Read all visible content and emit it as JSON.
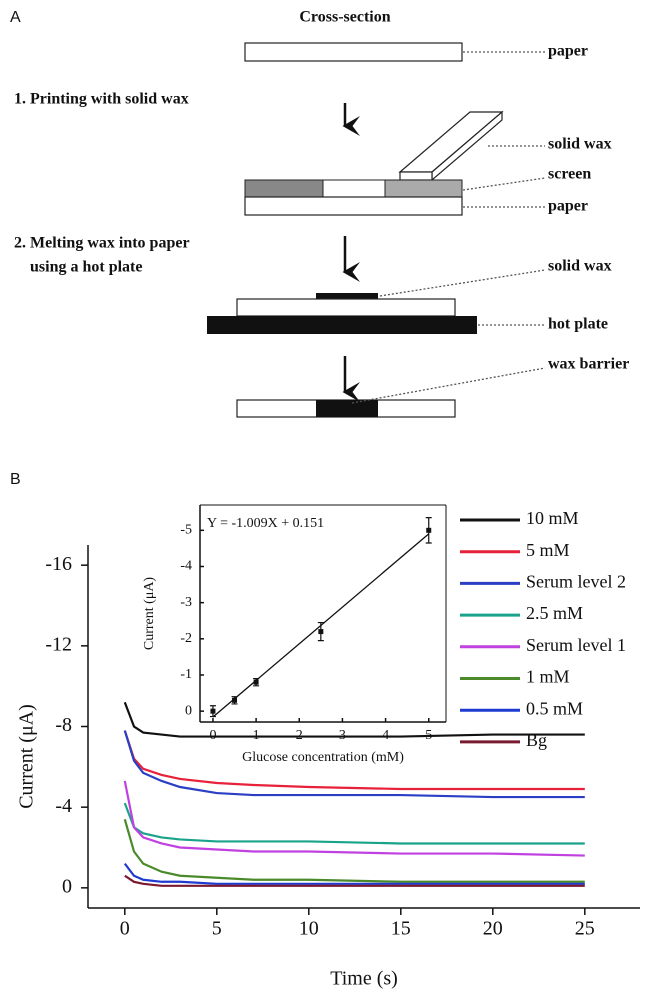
{
  "panel_a": {
    "label": "A",
    "heading": "Cross-section",
    "steps": [
      [
        "1. Printing with solid wax"
      ],
      [
        "2. Melting wax into paper",
        "using a hot plate"
      ]
    ],
    "labels": [
      "paper",
      "solid wax",
      "screen",
      "paper",
      "solid wax",
      "hot plate",
      "wax barrier"
    ]
  },
  "panel_b": {
    "label": "B"
  },
  "chart_data": [
    {
      "type": "line",
      "x_label": "Time (s)",
      "y_label": "Current (μA)",
      "x": [
        0,
        0.5,
        1,
        2,
        3,
        5,
        7,
        10,
        15,
        20,
        25
      ],
      "series": [
        {
          "name": "10 mM",
          "color": "#111111",
          "values": [
            -9.2,
            -8.0,
            -7.7,
            -7.6,
            -7.5,
            -7.5,
            -7.5,
            -7.5,
            -7.5,
            -7.6,
            -7.6
          ]
        },
        {
          "name": "5 mM",
          "color": "#e8213a",
          "values": [
            -7.8,
            -6.4,
            -5.9,
            -5.6,
            -5.4,
            -5.2,
            -5.1,
            -5.0,
            -4.9,
            -4.9,
            -4.9
          ]
        },
        {
          "name": "Serum level 2",
          "color": "#2a3fc4",
          "values": [
            -7.8,
            -6.3,
            -5.7,
            -5.3,
            -5.0,
            -4.7,
            -4.6,
            -4.6,
            -4.6,
            -4.5,
            -4.5
          ]
        },
        {
          "name": "2.5 mM",
          "color": "#1aa38b",
          "values": [
            -4.2,
            -3.0,
            -2.7,
            -2.5,
            -2.4,
            -2.3,
            -2.3,
            -2.3,
            -2.2,
            -2.2,
            -2.2
          ]
        },
        {
          "name": "Serum level 1",
          "color": "#c040e0",
          "values": [
            -5.3,
            -3.0,
            -2.5,
            -2.2,
            -2.0,
            -1.9,
            -1.8,
            -1.8,
            -1.7,
            -1.7,
            -1.6
          ]
        },
        {
          "name": "1 mM",
          "color": "#4a8a2a",
          "values": [
            -3.4,
            -1.8,
            -1.2,
            -0.8,
            -0.6,
            -0.5,
            -0.4,
            -0.4,
            -0.3,
            -0.3,
            -0.3
          ]
        },
        {
          "name": "0.5 mM",
          "color": "#1f3ad0",
          "values": [
            -1.2,
            -0.6,
            -0.4,
            -0.3,
            -0.3,
            -0.2,
            -0.2,
            -0.2,
            -0.2,
            -0.2,
            -0.2
          ]
        },
        {
          "name": "Bg",
          "color": "#7a1a30",
          "values": [
            -0.6,
            -0.3,
            -0.2,
            -0.1,
            -0.1,
            -0.1,
            -0.1,
            -0.1,
            -0.1,
            -0.1,
            -0.1
          ]
        }
      ],
      "xlim": [
        -2,
        28
      ],
      "xticks": [
        0,
        5,
        10,
        15,
        20,
        25
      ],
      "ylim": [
        1,
        -17
      ],
      "yticks": [
        0,
        -4,
        -8,
        -12,
        -16
      ],
      "legend": "right"
    },
    {
      "type": "scatter",
      "annotation": "Y = -1.009X + 0.151",
      "x_label": "Glucose concentration (mM)",
      "y_label": "Current (μA)",
      "x": [
        0,
        0.5,
        1,
        2.5,
        5
      ],
      "values": [
        0.0,
        -0.3,
        -0.8,
        -2.2,
        -5.0
      ],
      "errors": [
        0.15,
        0.1,
        0.1,
        0.25,
        0.35
      ],
      "color": "#111111",
      "xlim": [
        -0.3,
        5.4
      ],
      "xticks": [
        0,
        1,
        2,
        3,
        4,
        5
      ],
      "ylim": [
        0.3,
        -5.7
      ],
      "yticks": [
        0,
        -1,
        -2,
        -3,
        -4,
        -5
      ]
    }
  ]
}
